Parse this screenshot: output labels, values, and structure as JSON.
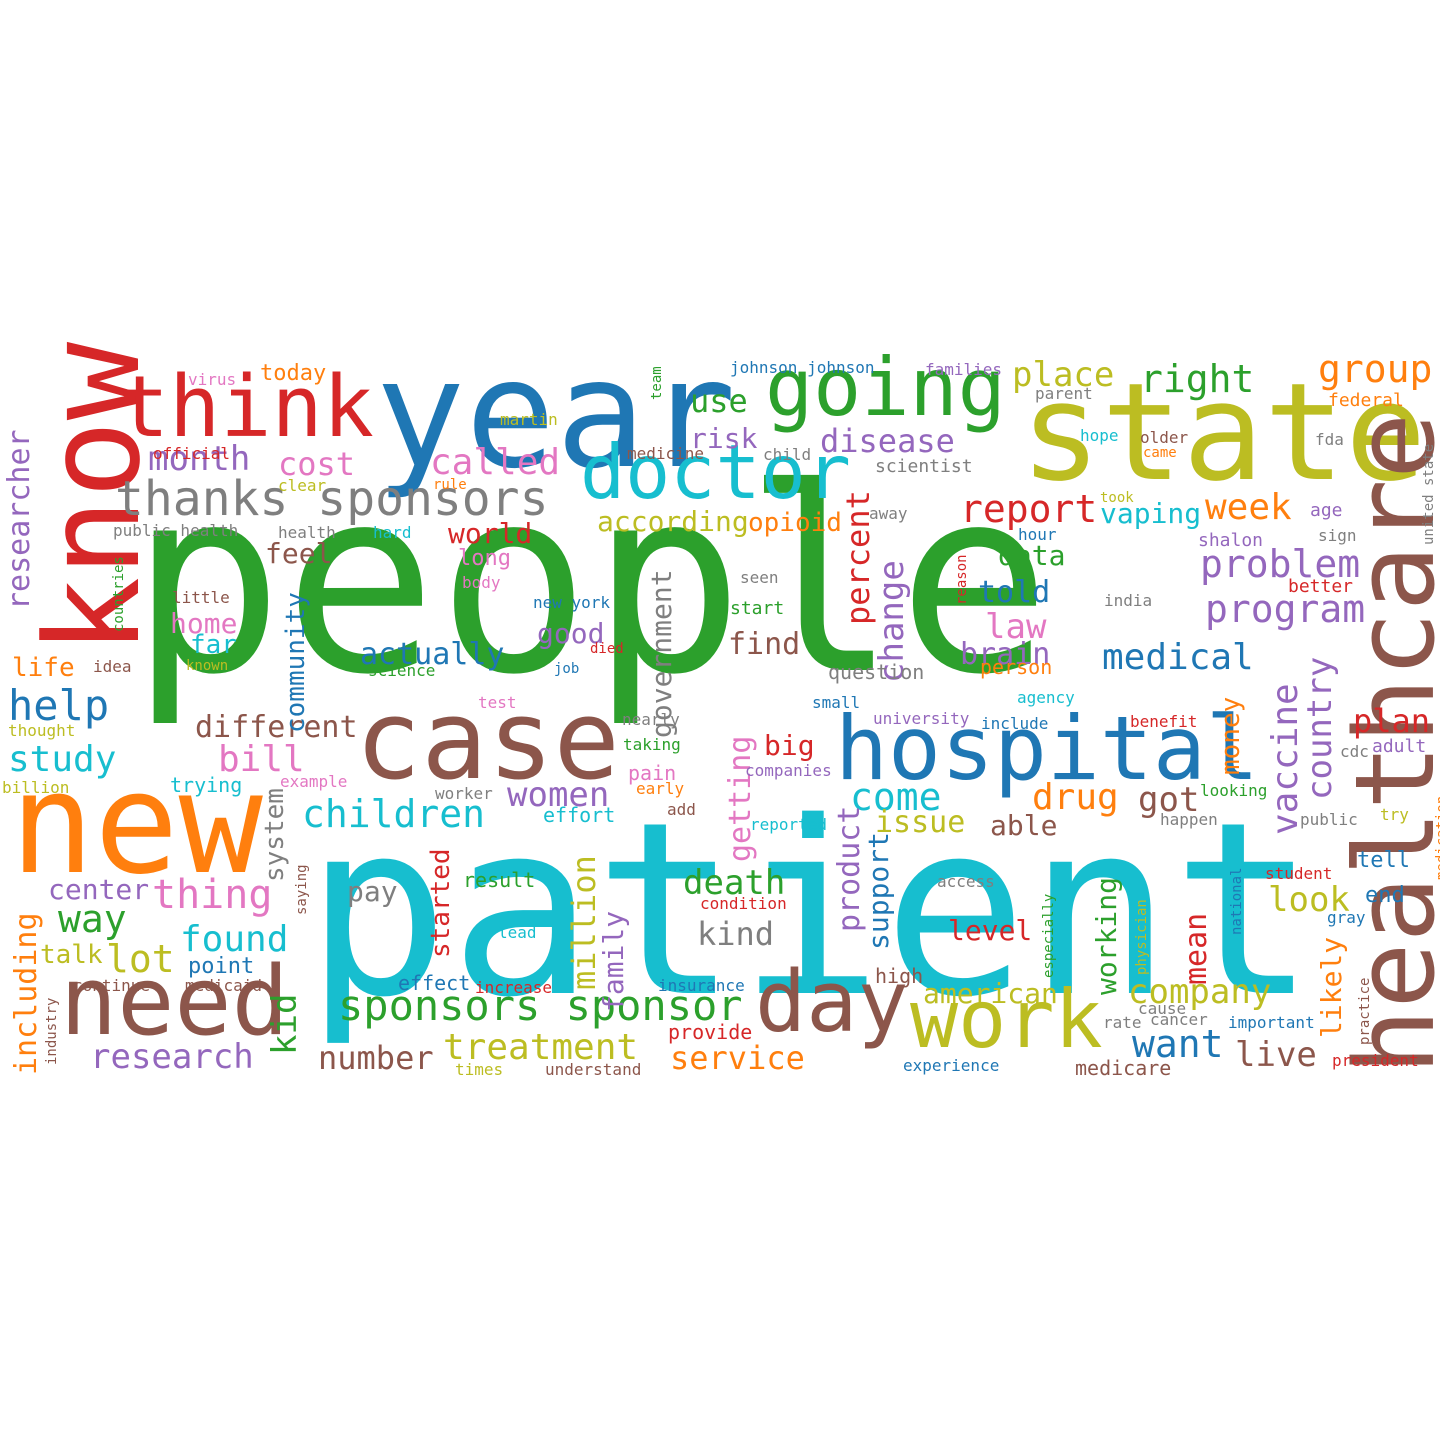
{
  "colors": {
    "green": "#2ca02c",
    "cyan": "#17becf",
    "olive": "#bcbd22",
    "blue": "#1f77b4",
    "red": "#d62728",
    "orange": "#ff7f0e",
    "brown": "#8c564b",
    "purple": "#9467bd",
    "pink": "#e377c2",
    "gray": "#7f7f7f"
  },
  "words": [
    "people",
    "patient",
    "year",
    "state",
    "know",
    "new",
    "healthcare",
    "case",
    "hospital",
    "need",
    "think",
    "going",
    "doctor",
    "work",
    "day",
    "thanks sponsors",
    "sponsors sponsor",
    "researcher",
    "month",
    "cost",
    "called",
    "disease",
    "use",
    "risk",
    "report",
    "week",
    "vaping",
    "problem",
    "program",
    "right",
    "group",
    "place",
    "according",
    "opioid",
    "percent",
    "change",
    "medical",
    "law",
    "brain",
    "told",
    "data",
    "help",
    "study",
    "life",
    "home",
    "far",
    "feel",
    "world",
    "long",
    "actually",
    "good",
    "find",
    "different",
    "bill",
    "children",
    "women",
    "drug",
    "got",
    "come",
    "issue",
    "able",
    "plan",
    "money",
    "vaccine",
    "country",
    "big",
    "getting",
    "thing",
    "center",
    "way",
    "found",
    "lot",
    "talk",
    "point",
    "kid",
    "system",
    "including",
    "research",
    "number",
    "treatment",
    "service",
    "death",
    "kind",
    "pay",
    "million",
    "family",
    "started",
    "government",
    "community",
    "product",
    "support",
    "working",
    "american",
    "company",
    "look",
    "level",
    "want",
    "live",
    "mean",
    "likely",
    "end",
    "tell",
    "student",
    "today",
    "virus",
    "johnson johnson",
    "families",
    "team",
    "parent",
    "federal",
    "martin",
    "official",
    "clear",
    "rule",
    "medicine",
    "child",
    "hope",
    "older",
    "came",
    "fda",
    "scientist",
    "united state",
    "public health",
    "health",
    "hard",
    "took",
    "away",
    "age",
    "sign",
    "shalon",
    "countries",
    "little",
    "seen",
    "start",
    "new york",
    "india",
    "reason",
    "better",
    "known",
    "idea",
    "science",
    "job",
    "died",
    "question",
    "person",
    "hour",
    "agency",
    "thought",
    "test",
    "small",
    "nearly",
    "university",
    "include",
    "benefit",
    "adult",
    "cdc",
    "taking",
    "pain",
    "companies",
    "trying",
    "example",
    "billion",
    "worker",
    "early",
    "looking",
    "effort",
    "add",
    "reported",
    "public",
    "try",
    "happen",
    "medication",
    "result",
    "access",
    "condition",
    "saying",
    "lead",
    "especially",
    "physician",
    "national",
    "gray",
    "continue",
    "medicaid",
    "effect",
    "increase",
    "insurance",
    "industry",
    "practice",
    "important",
    "rate",
    "cancer",
    "cause",
    "provide",
    "times",
    "understand",
    "experience",
    "medicare",
    "president",
    "high",
    "body"
  ]
}
